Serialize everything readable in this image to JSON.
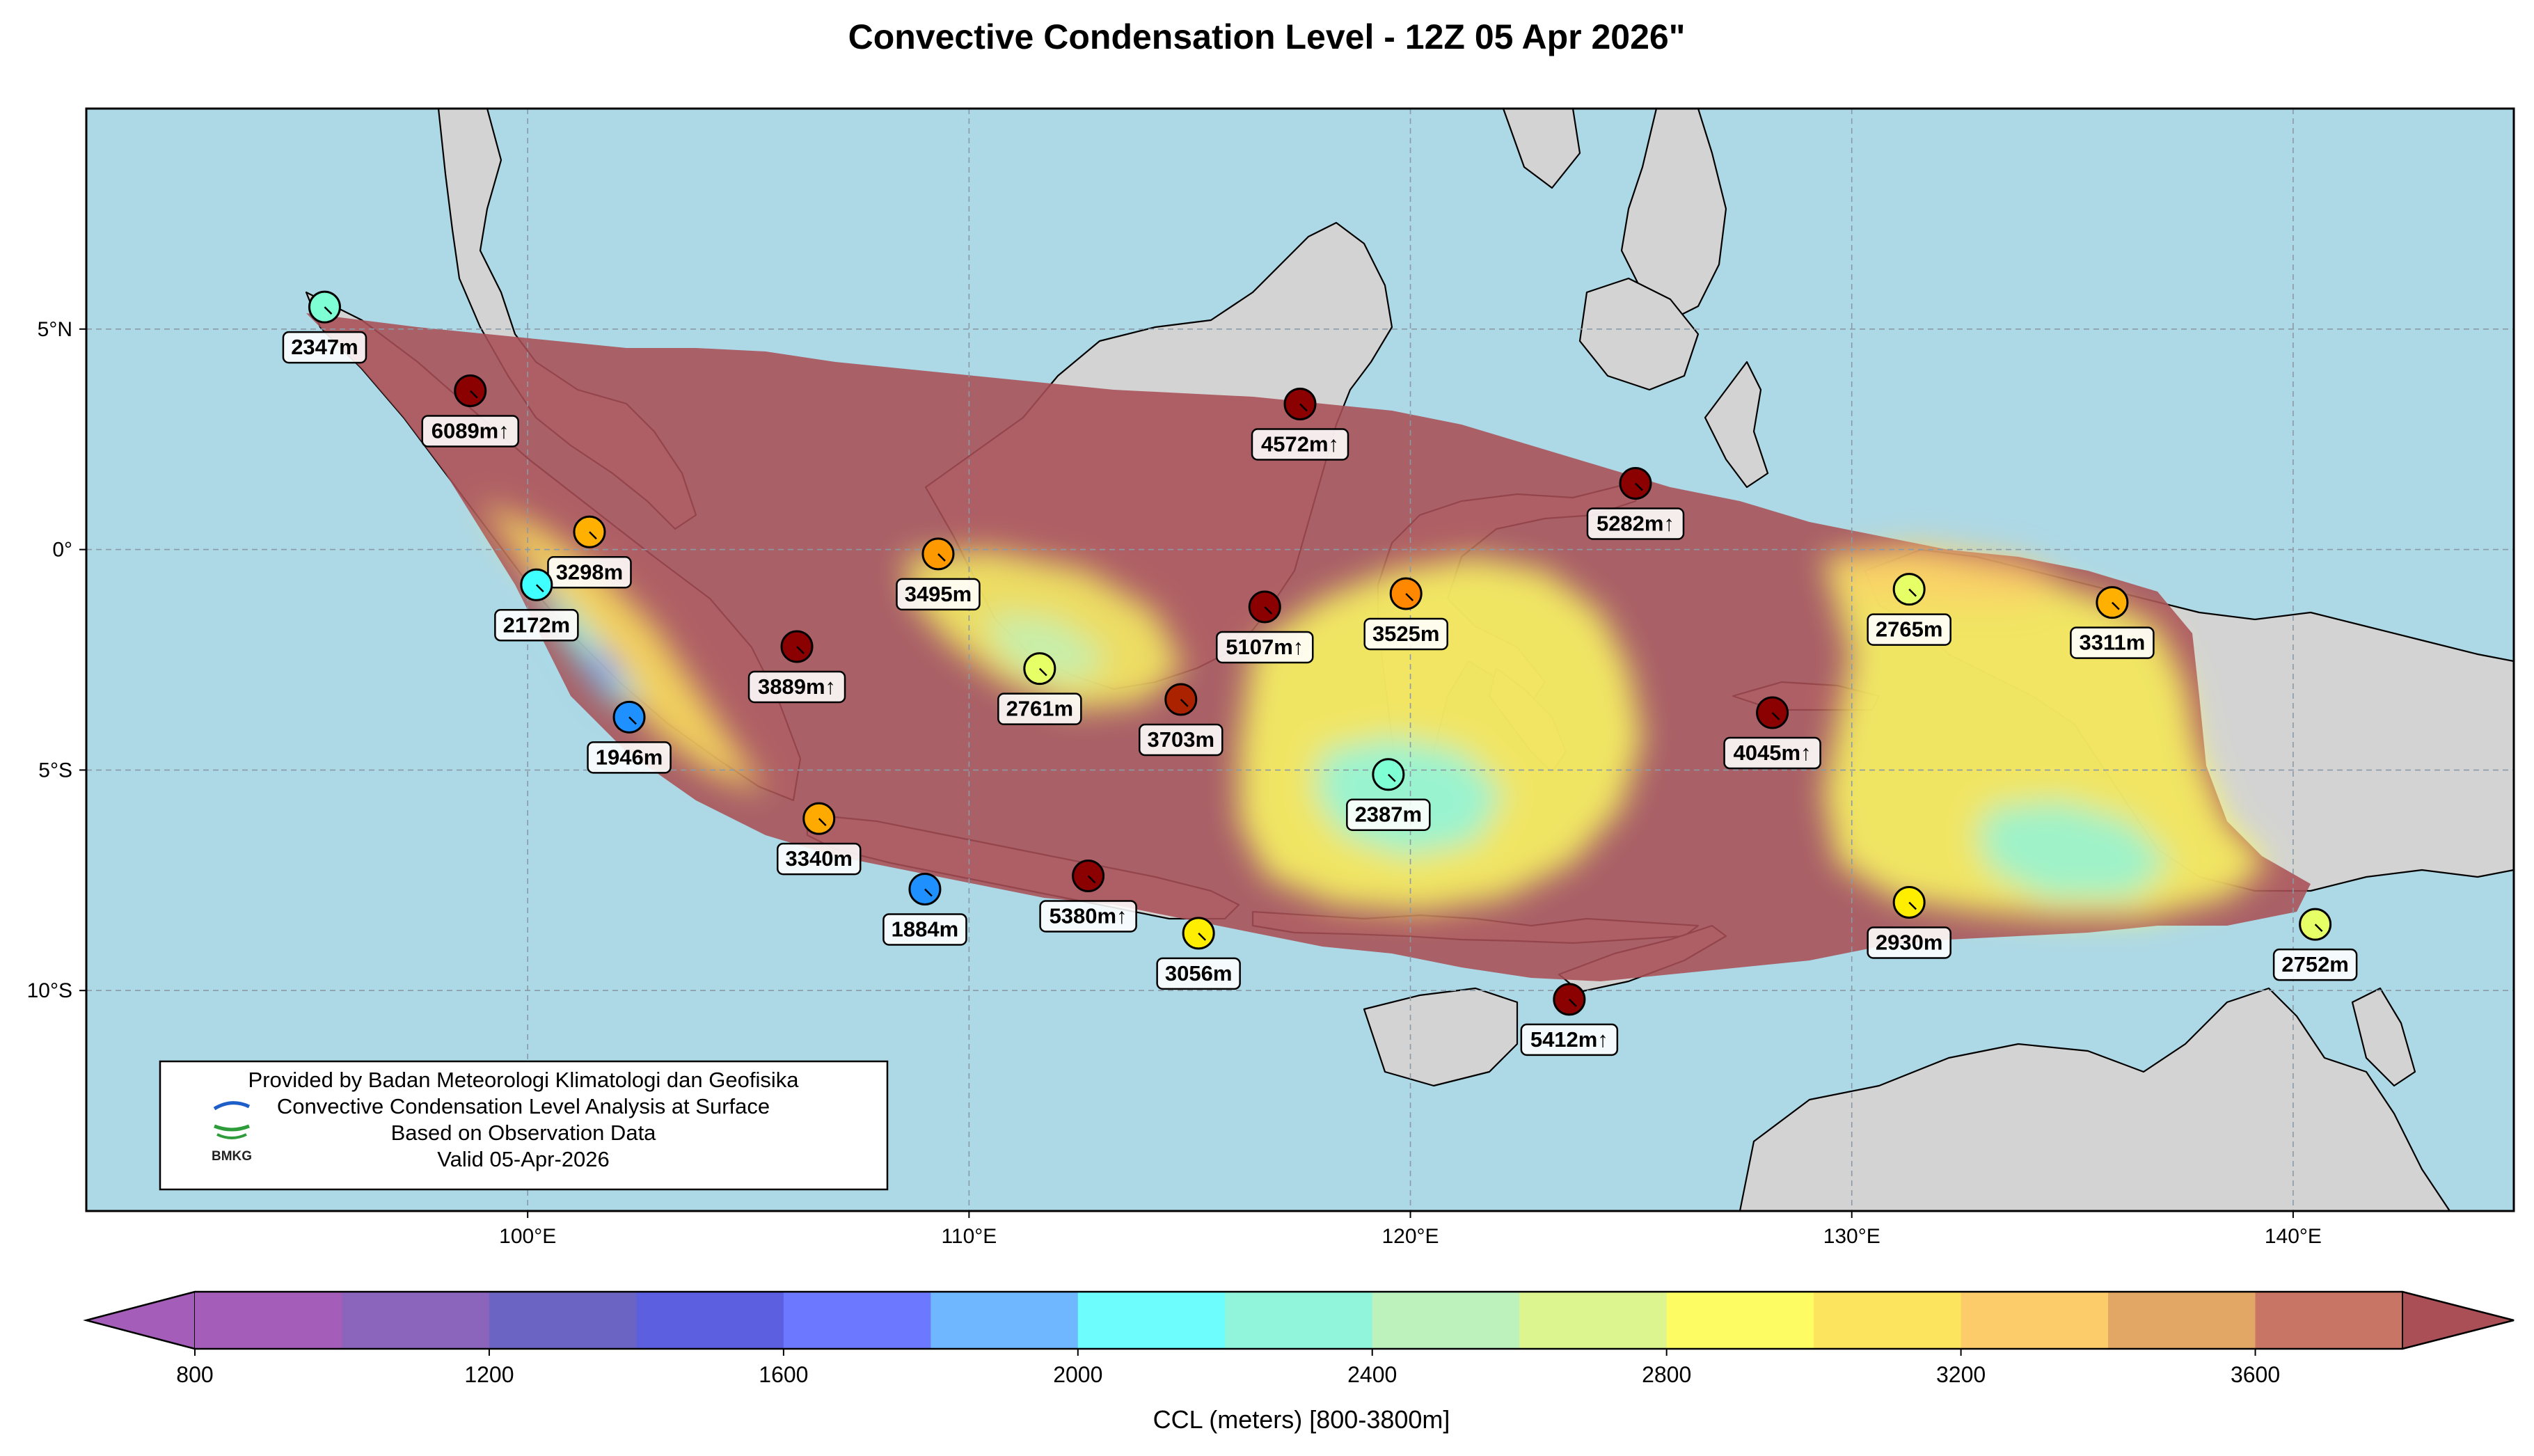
{
  "title": "Convective Condensation Level - 12Z 05 Apr 2026\"",
  "map": {
    "extent": {
      "lon_min": 90,
      "lon_max": 145,
      "lat_min": -15,
      "lat_max": 10
    },
    "ocean_color": "#add8e6",
    "land_color": "#d3d3d3",
    "lon_ticks": [
      {
        "value": 100,
        "label": "100°E"
      },
      {
        "value": 110,
        "label": "110°E"
      },
      {
        "value": 120,
        "label": "120°E"
      },
      {
        "value": 130,
        "label": "130°E"
      },
      {
        "value": 140,
        "label": "140°E"
      }
    ],
    "lat_ticks": [
      {
        "value": 5,
        "label": "5°N"
      },
      {
        "value": 0,
        "label": "0°"
      },
      {
        "value": -5,
        "label": "5°S"
      },
      {
        "value": -10,
        "label": "10°S"
      }
    ],
    "grid": true
  },
  "stations": [
    {
      "lon": 95.4,
      "lat": 5.5,
      "value": 2347,
      "label": "2347m",
      "color": "#7fffd4"
    },
    {
      "lon": 98.7,
      "lat": 3.6,
      "value": 6089,
      "label": "6089m↑",
      "color": "#8b0000"
    },
    {
      "lon": 101.4,
      "lat": 0.4,
      "value": 3298,
      "label": "3298m",
      "color": "#ffb000"
    },
    {
      "lon": 100.2,
      "lat": -0.8,
      "value": 2172,
      "label": "2172m",
      "color": "#40ffff"
    },
    {
      "lon": 102.3,
      "lat": -3.8,
      "value": 1946,
      "label": "1946m",
      "color": "#1e90ff"
    },
    {
      "lon": 109.3,
      "lat": -0.1,
      "value": 3495,
      "label": "3495m",
      "color": "#ff9900"
    },
    {
      "lon": 106.1,
      "lat": -2.2,
      "value": 3889,
      "label": "3889m↑",
      "color": "#8b0000"
    },
    {
      "lon": 111.6,
      "lat": -2.7,
      "value": 2761,
      "label": "2761m",
      "color": "#e6ff66"
    },
    {
      "lon": 114.8,
      "lat": -3.4,
      "value": 3703,
      "label": "3703m",
      "color": "#aa2200"
    },
    {
      "lon": 106.6,
      "lat": -6.1,
      "value": 3340,
      "label": "3340m",
      "color": "#ffaa00"
    },
    {
      "lon": 109.0,
      "lat": -7.7,
      "value": 1884,
      "label": "1884m",
      "color": "#1e90ff"
    },
    {
      "lon": 112.7,
      "lat": -7.4,
      "value": 5380,
      "label": "5380m↑",
      "color": "#8b0000"
    },
    {
      "lon": 115.2,
      "lat": -8.7,
      "value": 3056,
      "label": "3056m",
      "color": "#ffee00"
    },
    {
      "lon": 117.5,
      "lat": 3.3,
      "value": 4572,
      "label": "4572m↑",
      "color": "#8b0000"
    },
    {
      "lon": 116.7,
      "lat": -1.3,
      "value": 5107,
      "label": "5107m↑",
      "color": "#8b0000"
    },
    {
      "lon": 119.9,
      "lat": -1.0,
      "value": 3525,
      "label": "3525m",
      "color": "#ff8800"
    },
    {
      "lon": 119.5,
      "lat": -5.1,
      "value": 2387,
      "label": "2387m",
      "color": "#7fffd4"
    },
    {
      "lon": 125.1,
      "lat": 1.5,
      "value": 5282,
      "label": "5282m↑",
      "color": "#8b0000"
    },
    {
      "lon": 128.2,
      "lat": -3.7,
      "value": 4045,
      "label": "4045m↑",
      "color": "#8b0000"
    },
    {
      "lon": 123.6,
      "lat": -10.2,
      "value": 5412,
      "label": "5412m↑",
      "color": "#8b0000"
    },
    {
      "lon": 131.3,
      "lat": -0.9,
      "value": 2765,
      "label": "2765m",
      "color": "#e6ff66"
    },
    {
      "lon": 135.9,
      "lat": -1.2,
      "value": 3311,
      "label": "3311m",
      "color": "#ffb000"
    },
    {
      "lon": 131.3,
      "lat": -8.0,
      "value": 2930,
      "label": "2930m",
      "color": "#ffee00"
    },
    {
      "lon": 140.5,
      "lat": -8.5,
      "value": 2752,
      "label": "2752m",
      "color": "#e6ff66"
    }
  ],
  "info_box": {
    "line1": "Provided by Badan Meteorologi Klimatologi dan Geofisika",
    "line2": "Convective Condensation Level Analysis at Surface",
    "line3": "Based on Observation Data",
    "line4": "Valid 05-Apr-2026",
    "logo_text": "BMKG"
  },
  "colorbar": {
    "label": "CCL (meters) [800-3800m]",
    "min": 800,
    "max": 3800,
    "step": 200,
    "ticks": [
      {
        "value": 800,
        "label": "800"
      },
      {
        "value": 1200,
        "label": "1200"
      },
      {
        "value": 1600,
        "label": "1600"
      },
      {
        "value": 2000,
        "label": "2000"
      },
      {
        "value": 2400,
        "label": "2400"
      },
      {
        "value": 2800,
        "label": "2800"
      },
      {
        "value": 3200,
        "label": "3200"
      },
      {
        "value": 3600,
        "label": "3600"
      }
    ],
    "colors": [
      "#a45db8",
      "#8b64bb",
      "#6c64c2",
      "#5c5fe0",
      "#6b78ff",
      "#6fb8ff",
      "#6dfdfd",
      "#91f5db",
      "#bdf2bd",
      "#dcf58f",
      "#fdfd63",
      "#fde45e",
      "#fdcc6a",
      "#e2a665",
      "#c87565"
    ],
    "under_color": "#a45db8",
    "over_color": "#a94f55"
  }
}
